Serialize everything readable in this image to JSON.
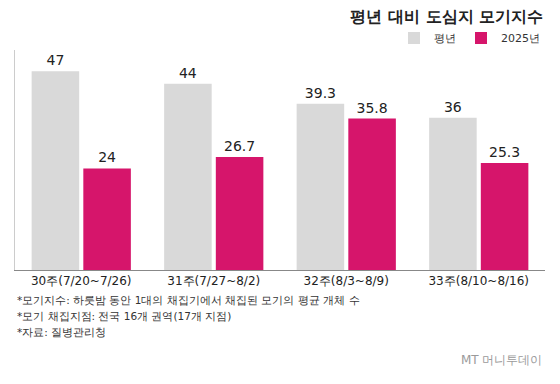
{
  "chart_data": {
    "type": "bar",
    "title": "평년 대비 도심지 모기지수",
    "categories": [
      "30주(7/20~7/26)",
      "31주(7/27~8/2)",
      "32주(8/3~8/9)",
      "33주(8/10~8/16)"
    ],
    "series": [
      {
        "name": "평년",
        "color": "#d9d9d9",
        "values": [
          47,
          44,
          39.3,
          36
        ]
      },
      {
        "name": "2025년",
        "color": "#d6156b",
        "values": [
          24,
          26.7,
          35.8,
          25.3
        ]
      }
    ],
    "ylim": [
      0,
      52
    ],
    "data_labels": true,
    "tick_labels": "x",
    "grid": false,
    "legend": "top right",
    "annotations": [
      "*모기지수: 하룻밤 동안 1대의 채집기에서 채집된 모기의 평균 개체 수",
      "*모기 채집지점: 전국 16개 권역(17개 지점)",
      "*자료: 질병관리청"
    ],
    "credit": "MT 머니투데이"
  }
}
